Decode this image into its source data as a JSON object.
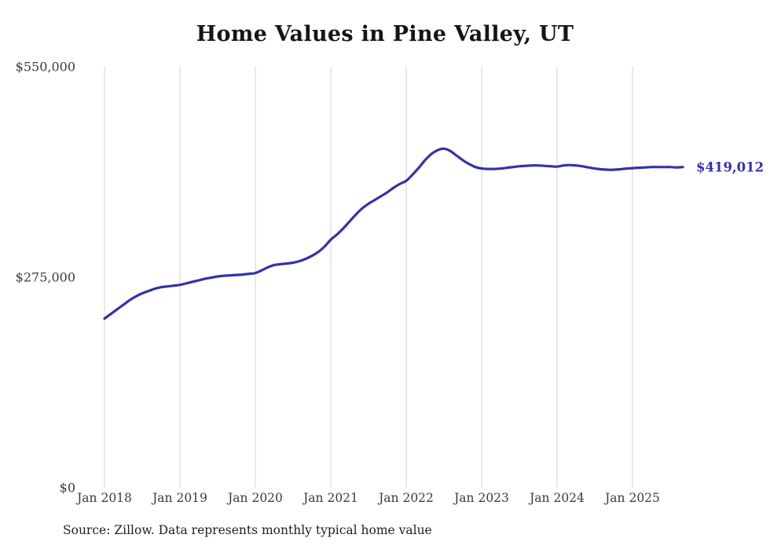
{
  "page": {
    "source_note": "Source: Zillow. Data represents monthly typical home value"
  },
  "chart_data": {
    "type": "line",
    "title": "Home Values in Pine Valley, UT",
    "series_name": "Monthly typical home value",
    "source": "Zillow",
    "ylim": [
      0,
      550000
    ],
    "grid": "vertical-only",
    "legend": "none",
    "line_color": "#3432a8",
    "gridline_color": "#d2d2d2",
    "end_label": "$419,012",
    "final_value": 419012,
    "y_ticks": [
      {
        "label": "$0",
        "value": 0
      },
      {
        "label": "$275,000",
        "value": 275000
      },
      {
        "label": "$550,000",
        "value": 550000
      }
    ],
    "x_ticks": [
      {
        "label": "Jan 2018",
        "month_index": 0
      },
      {
        "label": "Jan 2019",
        "month_index": 12
      },
      {
        "label": "Jan 2020",
        "month_index": 24
      },
      {
        "label": "Jan 2021",
        "month_index": 36
      },
      {
        "label": "Jan 2022",
        "month_index": 48
      },
      {
        "label": "Jan 2023",
        "month_index": 60
      },
      {
        "label": "Jan 2024",
        "month_index": 72
      },
      {
        "label": "Jan 2025",
        "month_index": 84
      }
    ],
    "x": [
      "2018-01",
      "2018-02",
      "2018-03",
      "2018-04",
      "2018-05",
      "2018-06",
      "2018-07",
      "2018-08",
      "2018-09",
      "2018-10",
      "2018-11",
      "2018-12",
      "2019-01",
      "2019-02",
      "2019-03",
      "2019-04",
      "2019-05",
      "2019-06",
      "2019-07",
      "2019-08",
      "2019-09",
      "2019-10",
      "2019-11",
      "2019-12",
      "2020-01",
      "2020-02",
      "2020-03",
      "2020-04",
      "2020-05",
      "2020-06",
      "2020-07",
      "2020-08",
      "2020-09",
      "2020-10",
      "2020-11",
      "2020-12",
      "2021-01",
      "2021-02",
      "2021-03",
      "2021-04",
      "2021-05",
      "2021-06",
      "2021-07",
      "2021-08",
      "2021-09",
      "2021-10",
      "2021-11",
      "2021-12",
      "2022-01",
      "2022-02",
      "2022-03",
      "2022-04",
      "2022-05",
      "2022-06",
      "2022-07",
      "2022-08",
      "2022-09",
      "2022-10",
      "2022-11",
      "2022-12",
      "2023-01",
      "2023-02",
      "2023-03",
      "2023-04",
      "2023-05",
      "2023-06",
      "2023-07",
      "2023-08",
      "2023-09",
      "2023-10",
      "2023-11",
      "2023-12",
      "2024-01",
      "2024-02",
      "2024-03",
      "2024-04",
      "2024-05",
      "2024-06",
      "2024-07",
      "2024-08",
      "2024-09",
      "2024-10",
      "2024-11",
      "2024-12",
      "2025-01",
      "2025-02",
      "2025-03",
      "2025-04",
      "2025-05",
      "2025-06",
      "2025-07",
      "2025-08",
      "2025-09"
    ],
    "values": [
      221000,
      227000,
      233000,
      239000,
      245000,
      250000,
      254000,
      257000,
      260000,
      262000,
      263000,
      264000,
      265000,
      267000,
      269000,
      271000,
      273000,
      274500,
      276000,
      277000,
      277500,
      278000,
      278500,
      279500,
      280500,
      284000,
      288000,
      291000,
      292000,
      293000,
      294000,
      296000,
      299000,
      303000,
      308000,
      315000,
      324000,
      331000,
      339000,
      348000,
      357000,
      365000,
      371000,
      376000,
      381000,
      386000,
      392000,
      397000,
      401000,
      409000,
      418000,
      428000,
      436000,
      441000,
      443000,
      440000,
      434000,
      428000,
      423000,
      419000,
      417000,
      416500,
      416500,
      417000,
      418000,
      419000,
      420000,
      420500,
      421000,
      421000,
      420500,
      420000,
      419500,
      421000,
      421500,
      421000,
      420000,
      418500,
      417000,
      416000,
      415500,
      415500,
      416000,
      417000,
      417500,
      418000,
      418500,
      419000,
      419000,
      419000,
      419000,
      418500,
      419012
    ]
  }
}
